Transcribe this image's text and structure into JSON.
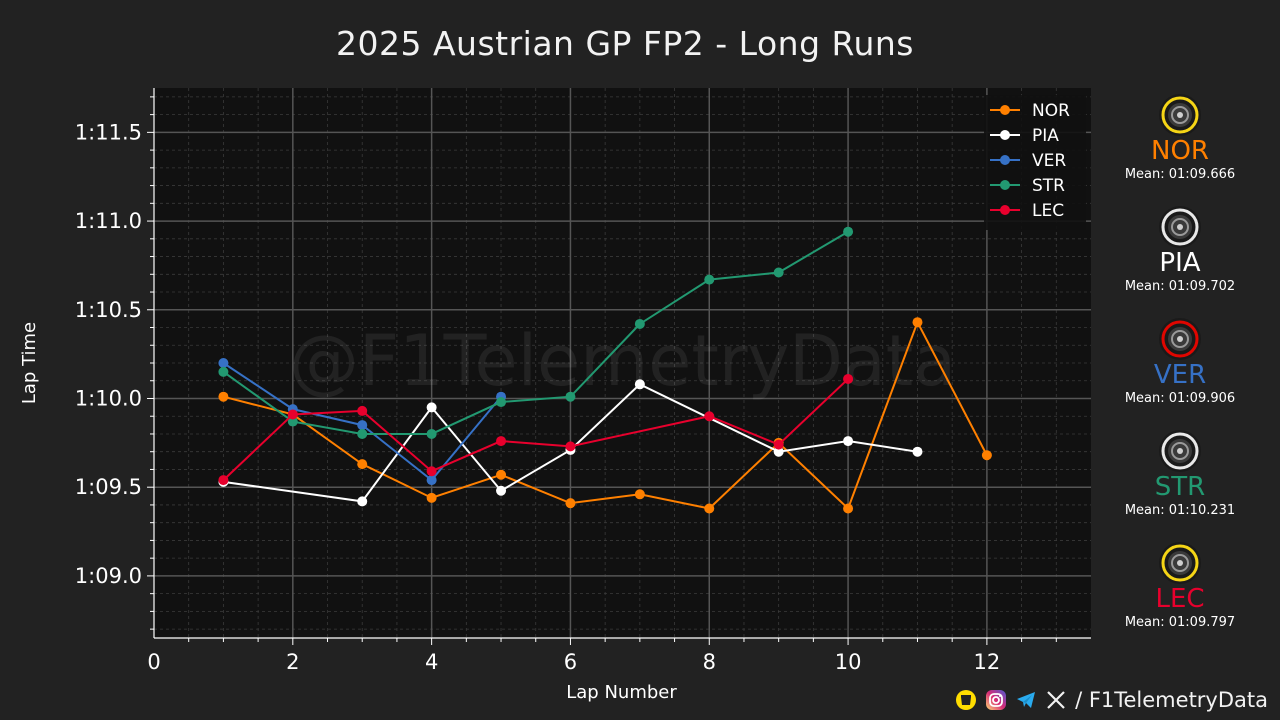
{
  "title": "2025 Austrian GP FP2 - Long Runs",
  "watermark": "@F1TelemetryData",
  "footer": {
    "handle": "/ F1TelemetryData",
    "icons": [
      "coffee-icon",
      "instagram-icon",
      "telegram-icon",
      "x-icon"
    ]
  },
  "drivers": [
    {
      "code": "NOR",
      "color": "#ff8000",
      "tyre": "medium",
      "tyre_color": "#f5d516",
      "mean": "Mean: 01:09.666"
    },
    {
      "code": "PIA",
      "color": "#ffffff",
      "tyre": "hard",
      "tyre_color": "#e8e8e8",
      "mean": "Mean: 01:09.702"
    },
    {
      "code": "VER",
      "color": "#3671c6",
      "tyre": "soft",
      "tyre_color": "#e10600",
      "mean": "Mean: 01:09.906"
    },
    {
      "code": "STR",
      "color": "#229971",
      "tyre": "hard",
      "tyre_color": "#e8e8e8",
      "mean": "Mean: 01:10.231"
    },
    {
      "code": "LEC",
      "color": "#e8002d",
      "tyre": "medium",
      "tyre_color": "#f5d516",
      "mean": "Mean: 01:09.797"
    }
  ],
  "chart_data": {
    "type": "line",
    "title": "2025 Austrian GP FP2 - Long Runs",
    "xlabel": "Lap Number",
    "ylabel": "Lap Time",
    "xlim": [
      0,
      13.5
    ],
    "ylim": [
      68.65,
      71.75
    ],
    "x_ticks": [
      0,
      2,
      4,
      6,
      8,
      10,
      12
    ],
    "y_ticks": [
      69.0,
      69.5,
      70.0,
      70.5,
      71.0,
      71.5
    ],
    "y_tick_labels": [
      "1:09.0",
      "1:09.5",
      "1:10.0",
      "1:10.5",
      "1:11.0",
      "1:11.5"
    ],
    "grid": true,
    "legend_position": "top-right",
    "series": [
      {
        "name": "NOR",
        "color": "#ff8000",
        "x": [
          1,
          2,
          3,
          4,
          5,
          6,
          7,
          8,
          9,
          10,
          11,
          12
        ],
        "y": [
          70.01,
          69.91,
          69.63,
          69.44,
          69.57,
          69.41,
          69.46,
          69.38,
          69.75,
          69.38,
          70.43,
          69.68
        ]
      },
      {
        "name": "PIA",
        "color": "#ffffff",
        "x": [
          1,
          3,
          4,
          5,
          6,
          7,
          9,
          10,
          11
        ],
        "y": [
          69.53,
          69.42,
          69.95,
          69.48,
          69.71,
          70.08,
          69.7,
          69.76,
          69.7
        ]
      },
      {
        "name": "VER",
        "color": "#3671c6",
        "x": [
          1,
          2,
          3,
          4,
          5
        ],
        "y": [
          70.2,
          69.94,
          69.85,
          69.54,
          70.01
        ]
      },
      {
        "name": "STR",
        "color": "#229971",
        "x": [
          1,
          2,
          3,
          4,
          5,
          6,
          7,
          8,
          9,
          10
        ],
        "y": [
          70.15,
          69.87,
          69.8,
          69.8,
          69.98,
          70.01,
          70.42,
          70.67,
          70.71,
          70.94
        ]
      },
      {
        "name": "LEC",
        "color": "#e8002d",
        "x": [
          1,
          2,
          3,
          4,
          5,
          6,
          8,
          9,
          10
        ],
        "y": [
          69.54,
          69.91,
          69.93,
          69.59,
          69.76,
          69.73,
          69.9,
          69.74,
          70.11
        ]
      }
    ]
  }
}
